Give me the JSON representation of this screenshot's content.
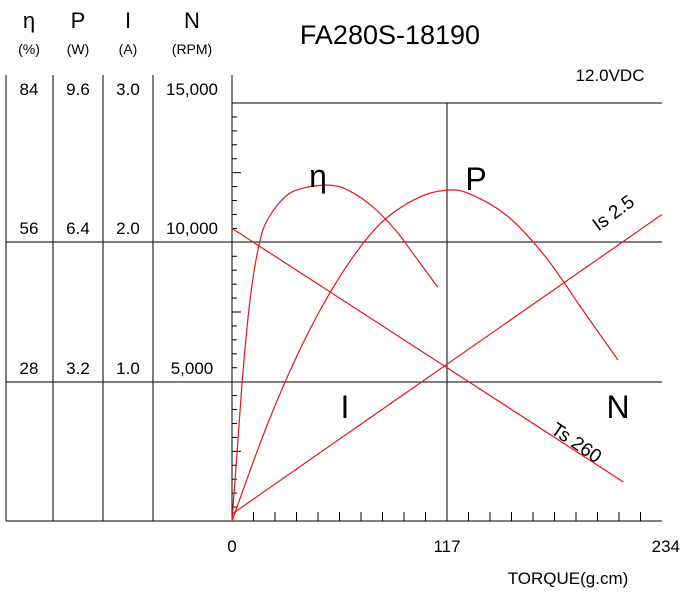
{
  "chart_data": {
    "type": "line",
    "title": "FA280S-18190",
    "voltage": "12.0VDC",
    "xlabel": "TORQUE(g.cm)",
    "xlim": [
      0,
      234
    ],
    "x_ticks": [
      "0",
      "117",
      "234"
    ],
    "y_axes": [
      {
        "symbol": "η",
        "unit": "(%)",
        "ticks": [
          "28",
          "56",
          "84"
        ],
        "max": 84
      },
      {
        "symbol": "P",
        "unit": "(W)",
        "ticks": [
          "3.2",
          "6.4",
          "9.6"
        ],
        "max": 9.6
      },
      {
        "symbol": "I",
        "unit": "(A)",
        "ticks": [
          "1.0",
          "2.0",
          "3.0"
        ],
        "max": 3.0
      },
      {
        "symbol": "N",
        "unit": "(RPM)",
        "ticks": [
          "5,000",
          "10,000",
          "15,000"
        ],
        "max": 15000
      }
    ],
    "series": [
      {
        "name": "η",
        "axis": 0,
        "color": "#e8141a",
        "x": [
          0,
          3,
          6,
          10,
          15,
          20,
          30,
          40,
          50,
          55,
          60,
          70,
          80,
          90,
          100,
          110,
          112
        ],
        "y": [
          0,
          15,
          30,
          45,
          56,
          61,
          65.5,
          67,
          67.5,
          67.4,
          67,
          65,
          62,
          58,
          53,
          48,
          47
        ]
      },
      {
        "name": "P",
        "axis": 1,
        "color": "#e8141a",
        "x": [
          0,
          20,
          40,
          60,
          80,
          100,
          117,
          130,
          150,
          170,
          190,
          200,
          210
        ],
        "y": [
          0,
          2.3,
          4.2,
          5.7,
          6.8,
          7.4,
          7.6,
          7.5,
          7.0,
          6.1,
          4.9,
          4.3,
          3.7
        ]
      },
      {
        "name": "I",
        "axis": 2,
        "color": "#e8141a",
        "x": [
          0,
          234
        ],
        "y": [
          0.05,
          2.2
        ]
      },
      {
        "name": "N",
        "axis": 3,
        "color": "#e8141a",
        "x": [
          0,
          213
        ],
        "y": [
          10500,
          1400
        ]
      }
    ],
    "curve_labels": [
      "η",
      "P",
      "I",
      "N"
    ],
    "annotations": [
      "Is 2.5",
      "Ts 260"
    ]
  }
}
